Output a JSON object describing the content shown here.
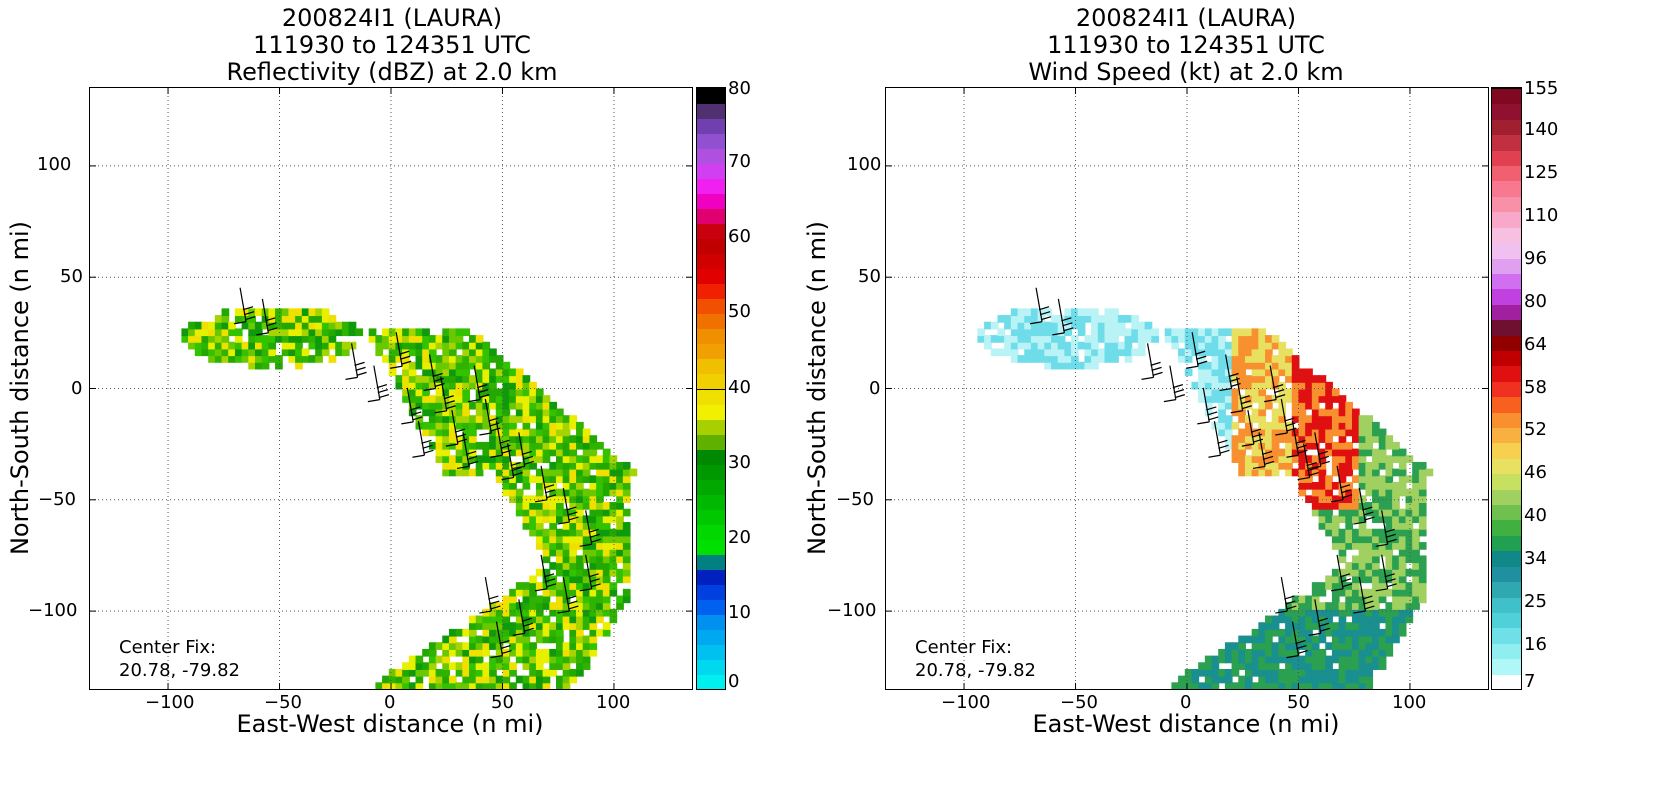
{
  "panels": [
    {
      "id": "left",
      "title": [
        "200824I1 (LAURA)",
        "111930 to 124351 UTC",
        "Reflectivity (dBZ) at 2.0 km"
      ],
      "xlabel": "East-West distance (n mi)",
      "ylabel": "North-South distance (n mi)",
      "center_fix_label": "Center Fix:",
      "center_fix_value": "20.78, -79.82",
      "colorbar": {
        "labels": [
          "80",
          "70",
          "60",
          "50",
          "40",
          "30",
          "20",
          "10",
          "0"
        ],
        "colors": [
          "#00f0f0",
          "#00d8f0",
          "#00c0f0",
          "#00a8f0",
          "#0090f0",
          "#0060f0",
          "#0040e0",
          "#0020c0",
          "#008080",
          "#00e000",
          "#00d800",
          "#00c800",
          "#00b800",
          "#00a800",
          "#009800",
          "#008800",
          "#60b000",
          "#a8d000",
          "#f0f000",
          "#f0e000",
          "#f0d000",
          "#f0c000",
          "#f0a000",
          "#f09000",
          "#f07000",
          "#f05000",
          "#f02000",
          "#e00000",
          "#d00000",
          "#c00000",
          "#c80010",
          "#e00070",
          "#f000c0",
          "#f020f0",
          "#d040f0",
          "#b050e0",
          "#9050d0",
          "#7040b0",
          "#503070",
          "#000000"
        ]
      },
      "chart_data": {
        "type": "heatmap",
        "title": "200824I1 (LAURA) 111930 to 124351 UTC Reflectivity (dBZ) at 2.0 km",
        "xlabel": "East-West distance (n mi)",
        "ylabel": "North-South distance (n mi)",
        "xlim": [
          -135,
          135
        ],
        "ylim": [
          -135,
          135
        ],
        "xticks": [
          -100,
          -50,
          0,
          50,
          100
        ],
        "yticks": [
          -100,
          -50,
          0,
          50,
          100
        ],
        "grid": true,
        "colorbar_range": [
          0,
          80
        ],
        "colorbar_ticks": [
          0,
          10,
          20,
          30,
          40,
          50,
          60,
          70,
          80
        ],
        "shape": "echo-band",
        "cell_palette": [
          "#2fb300",
          "#33c200",
          "#6ac800",
          "#a6d400",
          "#e8f000",
          "#f0e000",
          "#0e9a0a",
          "#22a800"
        ],
        "wind_barbs": [
          [
            -65,
            30
          ],
          [
            -55,
            25
          ],
          [
            -15,
            5
          ],
          [
            -5,
            -5
          ],
          [
            5,
            10
          ],
          [
            10,
            -15
          ],
          [
            15,
            -30
          ],
          [
            20,
            0
          ],
          [
            25,
            -10
          ],
          [
            30,
            -25
          ],
          [
            35,
            -35
          ],
          [
            40,
            -5
          ],
          [
            45,
            -20
          ],
          [
            50,
            -30
          ],
          [
            55,
            -40
          ],
          [
            60,
            -35
          ],
          [
            70,
            -50
          ],
          [
            80,
            -60
          ],
          [
            90,
            -70
          ],
          [
            70,
            -90
          ],
          [
            60,
            -110
          ],
          [
            50,
            -120
          ],
          [
            45,
            -100
          ],
          [
            80,
            -100
          ],
          [
            90,
            -90
          ]
        ]
      }
    },
    {
      "id": "right",
      "title": [
        "200824I1 (LAURA)",
        "111930 to 124351 UTC",
        "Wind Speed (kt) at 2.0 km"
      ],
      "xlabel": "East-West distance (n mi)",
      "ylabel": "North-South distance (n mi)",
      "center_fix_label": "Center Fix:",
      "center_fix_value": "20.78, -79.82",
      "colorbar": {
        "labels": [
          "155",
          "140",
          "125",
          "110",
          "96",
          "80",
          "64",
          "58",
          "52",
          "46",
          "40",
          "34",
          "25",
          "16",
          "7"
        ],
        "colors": [
          "#ffffff",
          "#b0f8f8",
          "#90eef0",
          "#70e0e8",
          "#50d0d8",
          "#40c0c8",
          "#30a8b0",
          "#2090a0",
          "#108888",
          "#20a050",
          "#40b040",
          "#70c050",
          "#a0d060",
          "#c8e060",
          "#e8e060",
          "#f8d050",
          "#f8b040",
          "#f89030",
          "#f86020",
          "#f03020",
          "#e01010",
          "#c00000",
          "#900000",
          "#701030",
          "#a020a0",
          "#c040e0",
          "#d070f0",
          "#e0a0f0",
          "#f0c0f0",
          "#f8c0e0",
          "#f8a8c8",
          "#f890a8",
          "#f87890",
          "#f06070",
          "#e04050",
          "#c03040",
          "#a02030",
          "#901030",
          "#800820"
        ]
      },
      "chart_data": {
        "type": "heatmap",
        "title": "200824I1 (LAURA) 111930 to 124351 UTC Wind Speed (kt) at 2.0 km",
        "xlabel": "East-West distance (n mi)",
        "ylabel": "North-South distance (n mi)",
        "xlim": [
          -135,
          135
        ],
        "ylim": [
          -135,
          135
        ],
        "xticks": [
          -100,
          -50,
          0,
          50,
          100
        ],
        "yticks": [
          -100,
          -50,
          0,
          50,
          100
        ],
        "grid": true,
        "colorbar_range": [
          7,
          155
        ],
        "colorbar_ticks": [
          7,
          16,
          25,
          34,
          40,
          46,
          52,
          58,
          64,
          80,
          96,
          110,
          125,
          140,
          155
        ],
        "shape": "echo-band",
        "cell_palette": [
          "#6fdcea",
          "#b9f3f6",
          "#e8e060",
          "#f89030",
          "#e01010",
          "#a0d060",
          "#2aa050",
          "#1a8f8f"
        ],
        "wind_barbs": [
          [
            -65,
            30
          ],
          [
            -55,
            25
          ],
          [
            -15,
            5
          ],
          [
            -5,
            -5
          ],
          [
            5,
            10
          ],
          [
            10,
            -15
          ],
          [
            15,
            -30
          ],
          [
            20,
            0
          ],
          [
            25,
            -10
          ],
          [
            30,
            -25
          ],
          [
            35,
            -35
          ],
          [
            40,
            -5
          ],
          [
            45,
            -20
          ],
          [
            50,
            -30
          ],
          [
            55,
            -40
          ],
          [
            60,
            -35
          ],
          [
            70,
            -50
          ],
          [
            80,
            -60
          ],
          [
            90,
            -70
          ],
          [
            70,
            -90
          ],
          [
            60,
            -110
          ],
          [
            50,
            -120
          ],
          [
            45,
            -100
          ],
          [
            80,
            -100
          ],
          [
            90,
            -90
          ]
        ]
      }
    }
  ]
}
